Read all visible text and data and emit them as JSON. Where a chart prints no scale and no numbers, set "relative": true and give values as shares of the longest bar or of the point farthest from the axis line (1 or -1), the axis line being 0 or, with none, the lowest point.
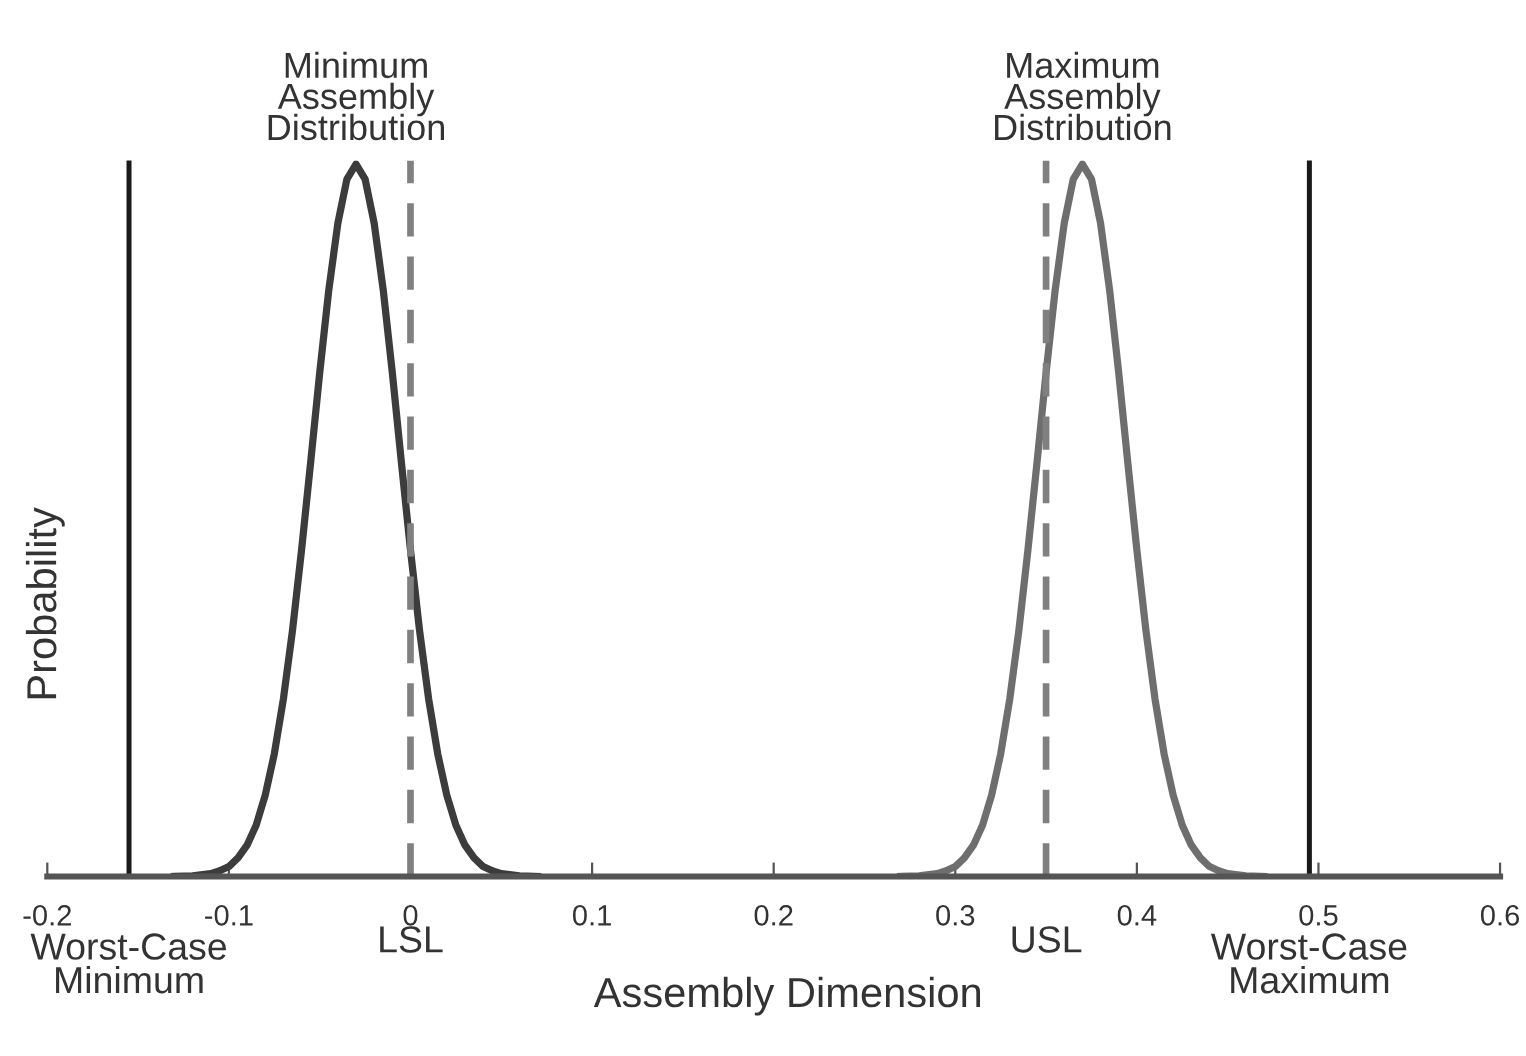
{
  "chart_data": {
    "type": "line",
    "relative": true,
    "xlabel": "Assembly Dimension",
    "ylabel": "Probability",
    "xlim": [
      -0.2,
      0.6
    ],
    "xticks": [
      -0.2,
      -0.1,
      0,
      0.1,
      0.2,
      0.3,
      0.4,
      0.5,
      0.6
    ],
    "grid": false,
    "legend": false,
    "marker": "none",
    "line_style": "solid",
    "series": [
      {
        "color": "#3c3c3c",
        "x": [
          -0.13,
          -0.12,
          -0.11,
          -0.105,
          -0.1,
          -0.095,
          -0.09,
          -0.085,
          -0.08,
          -0.075,
          -0.07,
          -0.065,
          -0.06,
          -0.055,
          -0.05,
          -0.045,
          -0.04,
          -0.035,
          -0.03,
          -0.025,
          -0.02,
          -0.015,
          -0.01,
          -0.005,
          0,
          0.005,
          0.01,
          0.015,
          0.02,
          0.025,
          0.03,
          0.035,
          0.04,
          0.045,
          0.05,
          0.06,
          0.07
        ],
        "values": [
          0,
          0.001,
          0.004,
          0.008,
          0.014,
          0.026,
          0.044,
          0.072,
          0.114,
          0.172,
          0.249,
          0.345,
          0.458,
          0.581,
          0.707,
          0.823,
          0.917,
          0.979,
          1,
          0.979,
          0.917,
          0.823,
          0.707,
          0.581,
          0.458,
          0.345,
          0.249,
          0.172,
          0.114,
          0.072,
          0.044,
          0.026,
          0.014,
          0.008,
          0.004,
          0.001,
          0
        ]
      },
      {
        "color": "#6e6e6e",
        "x": [
          0.27,
          0.28,
          0.29,
          0.295,
          0.3,
          0.305,
          0.31,
          0.315,
          0.32,
          0.325,
          0.33,
          0.335,
          0.34,
          0.345,
          0.35,
          0.355,
          0.36,
          0.365,
          0.37,
          0.375,
          0.38,
          0.385,
          0.39,
          0.395,
          0.4,
          0.405,
          0.41,
          0.415,
          0.42,
          0.425,
          0.43,
          0.435,
          0.44,
          0.445,
          0.45,
          0.46,
          0.47
        ],
        "values": [
          0,
          0.001,
          0.004,
          0.008,
          0.014,
          0.026,
          0.044,
          0.072,
          0.114,
          0.172,
          0.249,
          0.345,
          0.458,
          0.581,
          0.707,
          0.823,
          0.917,
          0.979,
          1,
          0.979,
          0.917,
          0.823,
          0.707,
          0.581,
          0.458,
          0.345,
          0.249,
          0.172,
          0.114,
          0.072,
          0.044,
          0.026,
          0.014,
          0.008,
          0.004,
          0.001,
          0
        ]
      }
    ],
    "ref_lines": [
      {
        "axis": "x",
        "value": -0.155,
        "label": "Worst-Case\nMinimum",
        "color": "#1a1a1a",
        "line_style": "solid"
      },
      {
        "axis": "x",
        "value": 0,
        "label": "LSL",
        "color": "#808080",
        "line_style": "dashed"
      },
      {
        "axis": "x",
        "value": 0.35,
        "label": "USL",
        "color": "#808080",
        "line_style": "dashed"
      },
      {
        "axis": "x",
        "value": 0.495,
        "label": "Worst-Case\nMaximum",
        "color": "#1a1a1a",
        "line_style": "solid"
      }
    ],
    "annotations": [
      {
        "text": "Minimum\nAssembly\nDistribution",
        "x": -0.03,
        "y": 1
      },
      {
        "text": "Maximum\nAssembly\nDistribution",
        "x": 0.37,
        "y": 1
      }
    ]
  }
}
